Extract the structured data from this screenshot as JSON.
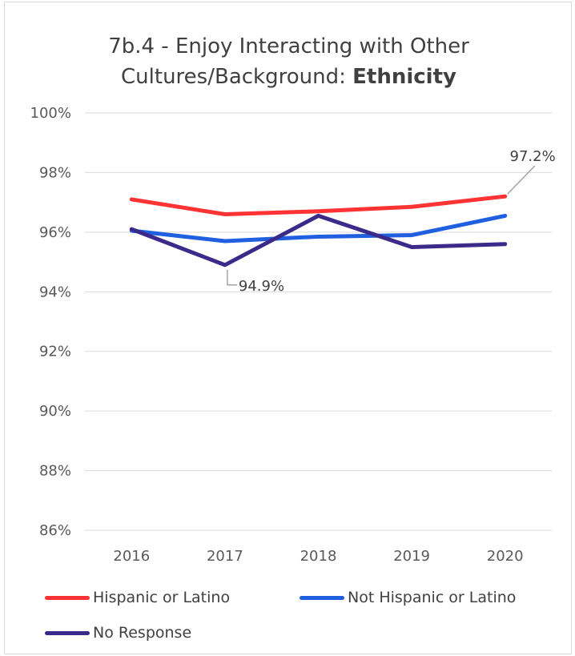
{
  "colors": {
    "hispanic": "#ff3333",
    "not_hispanic": "#1f5fe0",
    "no_response": "#3b2a8a",
    "grid": "#d9d9d9",
    "annotation_line": "#a6a6a6"
  },
  "chart_data": {
    "type": "line",
    "title_main": "7b.4 - Enjoy Interacting with Other Cultures/Background:",
    "title_bold": "Ethnicity",
    "categories": [
      "2016",
      "2017",
      "2018",
      "2019",
      "2020"
    ],
    "ylim": [
      86,
      100
    ],
    "yticks": [
      86,
      88,
      90,
      92,
      94,
      96,
      98,
      100
    ],
    "ytick_labels": [
      "86%",
      "88%",
      "90%",
      "92%",
      "94%",
      "96%",
      "98%",
      "100%"
    ],
    "grid": true,
    "legend_position": "bottom",
    "series": [
      {
        "name": "Hispanic or Latino",
        "color_key": "hispanic",
        "values": [
          97.1,
          96.6,
          96.7,
          96.85,
          97.2
        ]
      },
      {
        "name": "Not Hispanic or Latino",
        "color_key": "not_hispanic",
        "values": [
          96.05,
          95.7,
          95.85,
          95.9,
          96.55
        ]
      },
      {
        "name": "No Response",
        "color_key": "no_response",
        "values": [
          96.1,
          94.9,
          96.55,
          95.5,
          95.6
        ]
      }
    ],
    "annotations": [
      {
        "series": 0,
        "point": 4,
        "text": "97.2%"
      },
      {
        "series": 2,
        "point": 1,
        "text": "94.9%"
      }
    ]
  }
}
